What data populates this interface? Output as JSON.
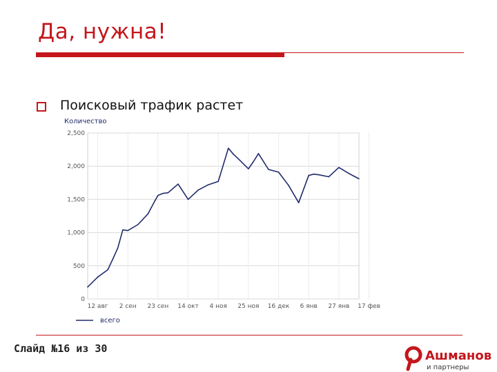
{
  "slide": {
    "title": "Да, нужна!",
    "bullet": "Поисковый трафик растет",
    "footer": "Слайд №16 из 30",
    "logo_main": "Ашманов",
    "logo_sub": "и партнеры",
    "accent_color": "#c4161c"
  },
  "chart_data": {
    "type": "line",
    "ylabel": "Количество",
    "ylim": [
      0,
      2500
    ],
    "yticks": [
      0,
      500,
      1000,
      1500,
      2000,
      2500
    ],
    "ytick_labels": [
      "0",
      "500",
      "1,000",
      "1,500",
      "2,000",
      "2,500"
    ],
    "grid": true,
    "legend_position": "bottom-left",
    "x_range": [
      0,
      27
    ],
    "xticks": [
      {
        "x": 1,
        "label": "12 авг"
      },
      {
        "x": 4,
        "label": "2 сен"
      },
      {
        "x": 7,
        "label": "23 сен"
      },
      {
        "x": 10,
        "label": "14 окт"
      },
      {
        "x": 13,
        "label": "4 ноя"
      },
      {
        "x": 16,
        "label": "25 ноя"
      },
      {
        "x": 19,
        "label": "16 дек"
      },
      {
        "x": 22,
        "label": "6 янв"
      },
      {
        "x": 25,
        "label": "27 янв"
      },
      {
        "x": 28,
        "label": "17 фев"
      }
    ],
    "series": [
      {
        "name": "всего",
        "color": "#1f2a6b",
        "x": [
          0,
          1,
          2,
          2.5,
          3,
          3.5,
          4,
          5,
          6,
          6.7,
          7,
          7.5,
          8,
          9,
          10,
          11,
          12,
          13,
          14,
          14.5,
          15,
          16,
          16.5,
          17,
          18,
          19,
          20,
          21,
          22,
          22.5,
          23,
          24,
          25,
          26,
          27
        ],
        "values": [
          180,
          330,
          440,
          600,
          770,
          1040,
          1030,
          1120,
          1280,
          1480,
          1560,
          1590,
          1600,
          1730,
          1500,
          1640,
          1720,
          1770,
          2270,
          2180,
          2110,
          1960,
          2070,
          2190,
          1950,
          1910,
          1710,
          1450,
          1860,
          1880,
          1870,
          1840,
          1980,
          1890,
          1810
        ]
      }
    ]
  }
}
